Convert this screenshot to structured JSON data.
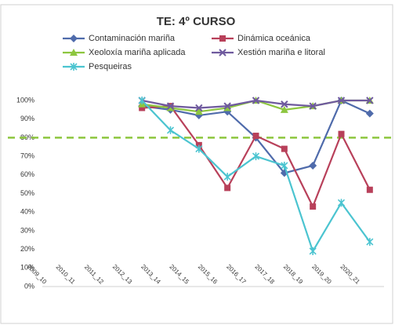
{
  "chart_data": {
    "type": "line",
    "title": "TE: 4º CURSO",
    "categories": [
      "2009_10",
      "2010_11",
      "2011_12",
      "2012_13",
      "2013_14",
      "2014_15",
      "2015_16",
      "2016_17",
      "2017_18",
      "2018_19",
      "2019_20",
      "2020_21"
    ],
    "series": [
      {
        "name": "Contaminación mariña",
        "color": "#4f6bab",
        "marker": "diamond",
        "values": [
          null,
          null,
          null,
          97,
          95,
          92,
          94,
          80,
          61,
          65,
          100,
          93
        ]
      },
      {
        "name": "Dinámica oceánica",
        "color": "#b8405a",
        "marker": "square",
        "values": [
          null,
          null,
          null,
          96,
          97,
          76,
          53,
          81,
          74,
          43,
          82,
          52
        ]
      },
      {
        "name": "Xeoloxía mariña aplicada",
        "color": "#8dc63f",
        "marker": "triangle",
        "values": [
          null,
          null,
          null,
          98,
          96,
          94,
          96,
          100,
          95,
          97,
          100,
          100
        ]
      },
      {
        "name": "Xestión mariña e litoral",
        "color": "#6f5a9e",
        "marker": "x",
        "values": [
          null,
          null,
          null,
          100,
          97,
          96,
          97,
          100,
          98,
          97,
          100,
          100
        ]
      },
      {
        "name": "Pesqueiras",
        "color": "#4bc4d0",
        "marker": "star",
        "values": [
          null,
          null,
          null,
          100,
          84,
          74,
          59,
          70,
          65,
          19,
          45,
          24
        ]
      }
    ],
    "ylim": [
      0,
      100
    ],
    "yticks": [
      {
        "value": 0,
        "label": "0%"
      },
      {
        "value": 10,
        "label": "10%"
      },
      {
        "value": 20,
        "label": "20%"
      },
      {
        "value": 30,
        "label": "30%"
      },
      {
        "value": 40,
        "label": "40%"
      },
      {
        "value": 50,
        "label": "50%"
      },
      {
        "value": 60,
        "label": "60%"
      },
      {
        "value": 70,
        "label": "70%"
      },
      {
        "value": 80,
        "label": "80%"
      },
      {
        "value": 90,
        "label": "90%"
      },
      {
        "value": 100,
        "label": "100%"
      }
    ],
    "reference_line": {
      "value": 80,
      "color": "#8dc63f"
    },
    "grid": false,
    "legend": "top"
  }
}
